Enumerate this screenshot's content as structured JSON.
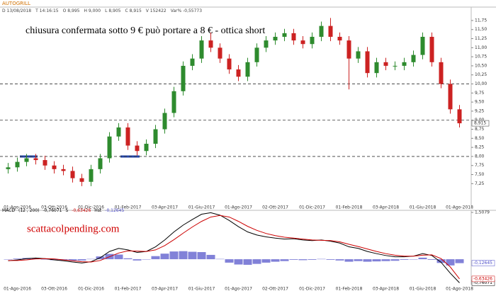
{
  "header": {
    "symbol": "AUTOGRILL",
    "fields": [
      "D 13/08/2018",
      "T 14:16:15",
      "O 8,995",
      "H 9,000",
      "L 8,905",
      "C 8,915",
      "V 152422",
      "Var% -0,55773"
    ]
  },
  "chart_data": [
    {
      "type": "candlestick",
      "annotation": "chiusura confermata sotto 9 € può portare  a 8 € - ottica short",
      "categories": [
        null,
        "01-Ago-2016",
        null,
        null,
        null,
        "03-Ott-2016",
        null,
        null,
        null,
        "01-Dic-2016",
        null,
        null,
        null,
        "01-Feb-2017",
        null,
        null,
        null,
        "03-Apr-2017",
        null,
        null,
        null,
        "01-Giu-2017",
        null,
        null,
        null,
        "01-Ago-2017",
        null,
        null,
        null,
        "02-Ott-2017",
        null,
        null,
        null,
        "01-Dic-2017",
        null,
        null,
        null,
        "01-Feb-2018",
        null,
        null,
        null,
        "03-Apr-2018",
        null,
        null,
        null,
        "01-Giu-2018",
        null,
        null,
        null,
        "01-Ago-2018"
      ],
      "open": [
        7.65,
        7.7,
        7.85,
        7.95,
        7.9,
        7.75,
        7.65,
        7.6,
        7.4,
        7.3,
        7.65,
        7.95,
        8.55,
        8.8,
        8.3,
        8.15,
        8.35,
        8.75,
        9.2,
        9.8,
        10.5,
        10.7,
        11.2,
        11.0,
        10.7,
        10.4,
        10.2,
        10.6,
        11.0,
        11.2,
        11.3,
        11.4,
        11.2,
        11.1,
        11.3,
        11.6,
        11.3,
        11.2,
        10.7,
        10.9,
        10.3,
        10.6,
        10.5,
        10.5,
        10.6,
        10.8,
        11.3,
        10.6,
        10.0,
        9.3
      ],
      "high": [
        7.82,
        7.97,
        8.07,
        8.07,
        8.02,
        7.87,
        7.77,
        7.72,
        7.52,
        7.77,
        8.07,
        8.67,
        8.92,
        8.92,
        8.42,
        8.47,
        8.87,
        9.32,
        9.92,
        10.62,
        10.82,
        11.32,
        11.42,
        11.12,
        10.82,
        10.52,
        10.72,
        11.12,
        11.32,
        11.42,
        11.52,
        11.52,
        11.32,
        11.42,
        11.72,
        11.82,
        11.42,
        11.32,
        11.02,
        11.02,
        10.72,
        10.72,
        10.62,
        10.72,
        10.92,
        11.42,
        11.42,
        10.72,
        10.12,
        9.42
      ],
      "low": [
        7.53,
        7.58,
        7.73,
        7.78,
        7.63,
        7.53,
        7.48,
        7.28,
        7.18,
        7.18,
        7.53,
        7.83,
        8.43,
        8.18,
        8.03,
        8.03,
        8.23,
        8.63,
        9.08,
        9.68,
        10.38,
        10.58,
        10.88,
        10.58,
        10.28,
        10.08,
        10.08,
        10.48,
        10.88,
        11.08,
        11.18,
        11.08,
        10.98,
        10.98,
        11.18,
        11.18,
        11.08,
        9.85,
        10.58,
        10.18,
        10.18,
        10.38,
        10.38,
        10.38,
        10.48,
        10.68,
        10.48,
        9.88,
        9.18,
        8.8
      ],
      "close": [
        7.7,
        7.85,
        7.95,
        7.9,
        7.75,
        7.65,
        7.6,
        7.4,
        7.3,
        7.65,
        7.95,
        8.55,
        8.8,
        8.3,
        8.15,
        8.35,
        8.75,
        9.2,
        9.8,
        10.5,
        10.7,
        11.2,
        11.0,
        10.7,
        10.4,
        10.2,
        10.6,
        11.0,
        11.2,
        11.3,
        11.4,
        11.2,
        11.1,
        11.3,
        11.6,
        11.3,
        11.2,
        10.7,
        10.9,
        10.3,
        10.6,
        10.5,
        10.5,
        10.6,
        10.8,
        11.3,
        10.6,
        10.0,
        9.3,
        8.915
      ],
      "up_color": "#2e8b2e",
      "down_color": "#cc2222",
      "last_price": {
        "value": 8.915,
        "label": "8,915"
      },
      "levels": [
        8,
        9,
        10
      ],
      "ylim": [
        6.69,
        12.12
      ],
      "yticks": [
        {
          "value": 7.25,
          "label": "7,25"
        },
        {
          "value": 7.5,
          "label": "7,50"
        },
        {
          "value": 7.75,
          "label": "7,75"
        },
        {
          "value": 8,
          "label": "8,00"
        },
        {
          "value": 8.25,
          "label": "8,25"
        },
        {
          "value": 8.5,
          "label": "8,50"
        },
        {
          "value": 8.75,
          "label": "8,75"
        },
        {
          "value": 9,
          "label": "9,00"
        },
        {
          "value": 9.25,
          "label": "9,25"
        },
        {
          "value": 9.5,
          "label": "9,50"
        },
        {
          "value": 9.75,
          "label": "9,75"
        },
        {
          "value": 10,
          "label": "10,00"
        },
        {
          "value": 10.25,
          "label": "10,25"
        },
        {
          "value": 10.5,
          "label": "10,50"
        },
        {
          "value": 10.75,
          "label": "10,75"
        },
        {
          "value": 11,
          "label": "11,00"
        },
        {
          "value": 11.25,
          "label": "11,25"
        },
        {
          "value": 11.5,
          "label": "11,50"
        },
        {
          "value": 11.75,
          "label": "11,75"
        }
      ]
    },
    {
      "type": "macd",
      "params": "(12 , 200)",
      "watermark": "scattacolpending.com",
      "categories": [
        null,
        "01-Ago-2016",
        null,
        null,
        null,
        "03-Ott-2016",
        null,
        null,
        null,
        "01-Dic-2016",
        null,
        null,
        null,
        "01-Feb-2017",
        null,
        null,
        null,
        "03-Apr-2017",
        null,
        null,
        null,
        "01-Giu-2017",
        null,
        null,
        null,
        "01-Ago-2017",
        null,
        null,
        null,
        "02-Ott-2017",
        null,
        null,
        null,
        "01-Dic-2017",
        null,
        null,
        null,
        "01-Feb-2018",
        null,
        null,
        null,
        "03-Apr-2018",
        null,
        null,
        null,
        "01-Giu-2018",
        null,
        null,
        null,
        "01-Ago-2018"
      ],
      "series": [
        {
          "name": "MACD",
          "color": "#000000",
          "last_label": "-0,76071",
          "values": [
            -0.05,
            -0.02,
            0.02,
            0.04,
            0.02,
            -0.02,
            -0.05,
            -0.09,
            -0.12,
            -0.08,
            0.05,
            0.25,
            0.35,
            0.3,
            0.22,
            0.25,
            0.4,
            0.62,
            0.88,
            1.1,
            1.28,
            1.45,
            1.5,
            1.42,
            1.25,
            1.05,
            0.88,
            0.78,
            0.72,
            0.68,
            0.65,
            0.66,
            0.62,
            0.6,
            0.62,
            0.58,
            0.52,
            0.4,
            0.35,
            0.25,
            0.18,
            0.12,
            0.08,
            0.08,
            0.1,
            0.18,
            0.12,
            -0.1,
            -0.45,
            -0.76071
          ]
        },
        {
          "name": "S",
          "color": "#cc0000",
          "last_label": "-0,63426",
          "values": [
            -0.04,
            -0.04,
            -0.02,
            0.01,
            0.02,
            0.01,
            -0.02,
            -0.05,
            -0.08,
            -0.09,
            -0.04,
            0.08,
            0.2,
            0.27,
            0.26,
            0.25,
            0.3,
            0.44,
            0.63,
            0.84,
            1.04,
            1.22,
            1.36,
            1.41,
            1.36,
            1.22,
            1.06,
            0.93,
            0.83,
            0.76,
            0.71,
            0.68,
            0.65,
            0.62,
            0.61,
            0.6,
            0.56,
            0.48,
            0.41,
            0.33,
            0.25,
            0.18,
            0.13,
            0.1,
            0.1,
            0.13,
            0.14,
            0.02,
            -0.25,
            -0.63426
          ]
        },
        {
          "name": "Hst",
          "color": "#4b4bc8",
          "last_label": "-0,12645",
          "values": [
            -0.01,
            0.02,
            0.04,
            0.03,
            0.0,
            -0.03,
            -0.03,
            -0.04,
            -0.04,
            0.01,
            0.09,
            0.17,
            0.15,
            0.03,
            -0.04,
            0.0,
            0.1,
            0.18,
            0.25,
            0.26,
            0.24,
            0.23,
            0.14,
            0.01,
            -0.11,
            -0.17,
            -0.18,
            -0.15,
            -0.11,
            -0.08,
            -0.06,
            -0.02,
            -0.03,
            -0.02,
            0.01,
            -0.02,
            -0.04,
            -0.08,
            -0.06,
            -0.08,
            -0.07,
            -0.06,
            -0.05,
            -0.02,
            0.0,
            0.05,
            -0.02,
            -0.12,
            -0.2,
            -0.12645
          ]
        }
      ],
      "ylim": [
        -0.82,
        1.5079
      ],
      "yticks": [
        {
          "value": 1.5079,
          "label": "1,5079"
        }
      ]
    }
  ]
}
